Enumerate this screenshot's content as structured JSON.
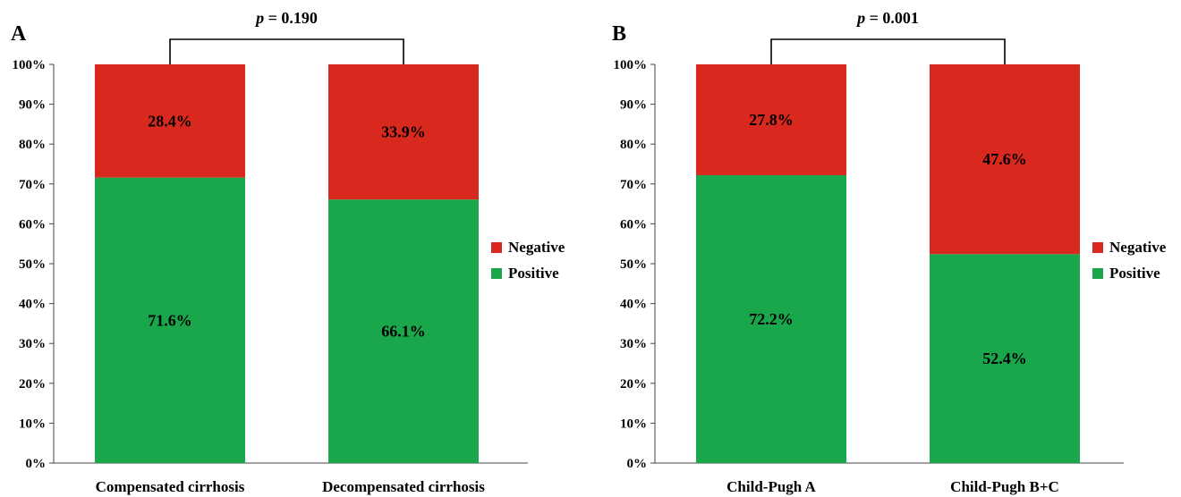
{
  "chart_data": [
    {
      "type": "bar",
      "stacked": true,
      "panel_label": "A",
      "p_label": "p",
      "p_value": "= 0.190",
      "categories": [
        "Compensated cirrhosis",
        "Decompensated cirrhosis"
      ],
      "series": [
        {
          "name": "Positive",
          "color": "#1aa64b",
          "values": [
            71.6,
            66.1
          ],
          "labels": [
            "71.6%",
            "66.1%"
          ]
        },
        {
          "name": "Negative",
          "color": "#d9291f",
          "values": [
            28.4,
            33.9
          ],
          "labels": [
            "28.4%",
            "33.9%"
          ]
        }
      ],
      "ylim": [
        0,
        100
      ],
      "yticks": [
        "0%",
        "10%",
        "20%",
        "30%",
        "40%",
        "50%",
        "60%",
        "70%",
        "80%",
        "90%",
        "100%"
      ],
      "legend": [
        {
          "name": "Negative",
          "color": "#d9291f"
        },
        {
          "name": "Positive",
          "color": "#1aa64b"
        }
      ],
      "legend_position": "right",
      "grid": false
    },
    {
      "type": "bar",
      "stacked": true,
      "panel_label": "B",
      "p_label": "p",
      "p_value": "= 0.001",
      "categories": [
        "Child-Pugh A",
        "Child-Pugh B+C"
      ],
      "series": [
        {
          "name": "Positive",
          "color": "#1aa64b",
          "values": [
            72.2,
            52.4
          ],
          "labels": [
            "72.2%",
            "52.4%"
          ]
        },
        {
          "name": "Negative",
          "color": "#d9291f",
          "values": [
            27.8,
            47.6
          ],
          "labels": [
            "27.8%",
            "47.6%"
          ]
        }
      ],
      "ylim": [
        0,
        100
      ],
      "yticks": [
        "0%",
        "10%",
        "20%",
        "30%",
        "40%",
        "50%",
        "60%",
        "70%",
        "80%",
        "90%",
        "100%"
      ],
      "legend": [
        {
          "name": "Negative",
          "color": "#d9291f"
        },
        {
          "name": "Positive",
          "color": "#1aa64b"
        }
      ],
      "legend_position": "right",
      "grid": false
    }
  ]
}
